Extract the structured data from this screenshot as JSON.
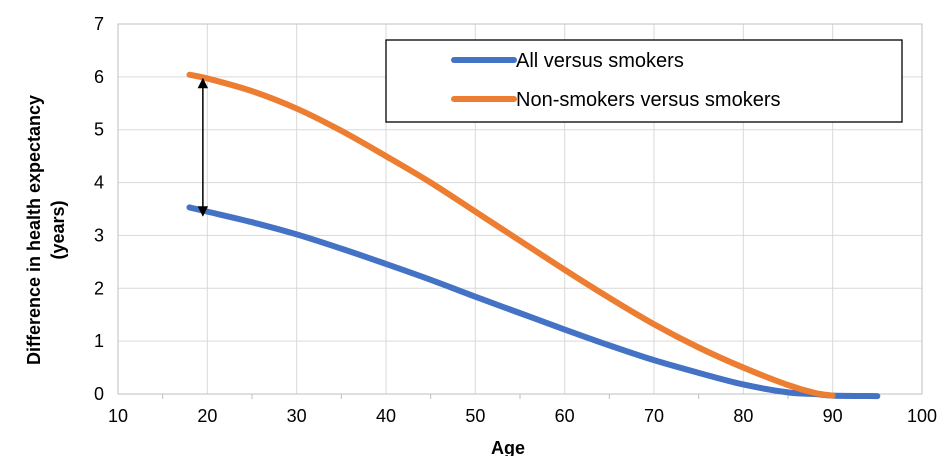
{
  "chart_data": {
    "type": "line",
    "xlabel": "Age",
    "ylabel": "Difference in health expectancy (years)",
    "ylabel_lines": [
      "Difference in health expectancy",
      "(years)"
    ],
    "xlim": [
      10,
      100
    ],
    "ylim": [
      0,
      7
    ],
    "x_ticks": [
      "10",
      "20",
      "30",
      "40",
      "50",
      "60",
      "70",
      "80",
      "90",
      "100"
    ],
    "y_ticks": [
      "0",
      "1",
      "2",
      "3",
      "4",
      "5",
      "6",
      "7"
    ],
    "grid": true,
    "legend_position": "top-right",
    "series": [
      {
        "name": "All versus smokers",
        "color": "#4472C4",
        "x": [
          18,
          20,
          25,
          30,
          35,
          40,
          45,
          50,
          55,
          60,
          65,
          70,
          75,
          80,
          85,
          88,
          90,
          95
        ],
        "y": [
          3.53,
          3.45,
          3.25,
          3.02,
          2.75,
          2.46,
          2.16,
          1.84,
          1.53,
          1.22,
          0.92,
          0.64,
          0.4,
          0.18,
          0.03,
          0.0,
          -0.03,
          -0.04
        ]
      },
      {
        "name": "Non-smokers versus smokers",
        "color": "#ED7D31",
        "x": [
          18,
          20,
          25,
          30,
          35,
          40,
          45,
          50,
          55,
          60,
          65,
          70,
          75,
          80,
          85,
          88,
          90
        ],
        "y": [
          6.04,
          5.97,
          5.73,
          5.4,
          4.98,
          4.5,
          4.0,
          3.45,
          2.9,
          2.35,
          1.82,
          1.32,
          0.88,
          0.5,
          0.17,
          0.02,
          -0.03
        ]
      }
    ],
    "annotation": {
      "type": "double-arrow",
      "x": 19.5,
      "y_start": 3.45,
      "y_end": 6.0
    }
  }
}
